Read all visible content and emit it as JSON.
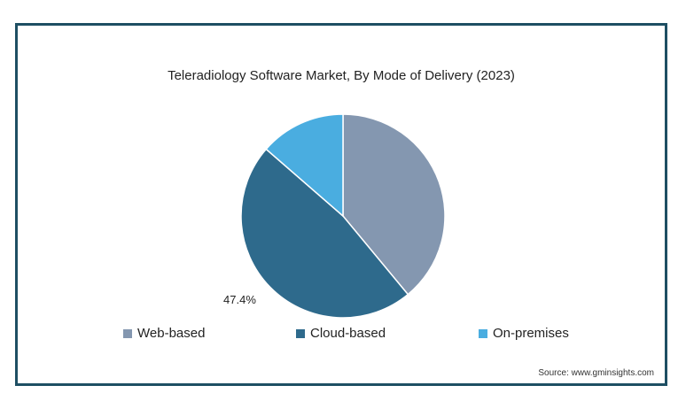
{
  "chart_data": {
    "type": "pie",
    "title": "Teleradiology Software Market, By Mode of Delivery (2023)",
    "categories": [
      "Web-based",
      "Cloud-based",
      "On-premises"
    ],
    "values": [
      39.0,
      47.4,
      13.6
    ],
    "colors": [
      "#8497b0",
      "#2e6a8c",
      "#4aade0"
    ],
    "data_labels": [
      "",
      "47.4%",
      ""
    ],
    "legend_placement": "bottom"
  },
  "source": "Source: www.gminsights.com"
}
